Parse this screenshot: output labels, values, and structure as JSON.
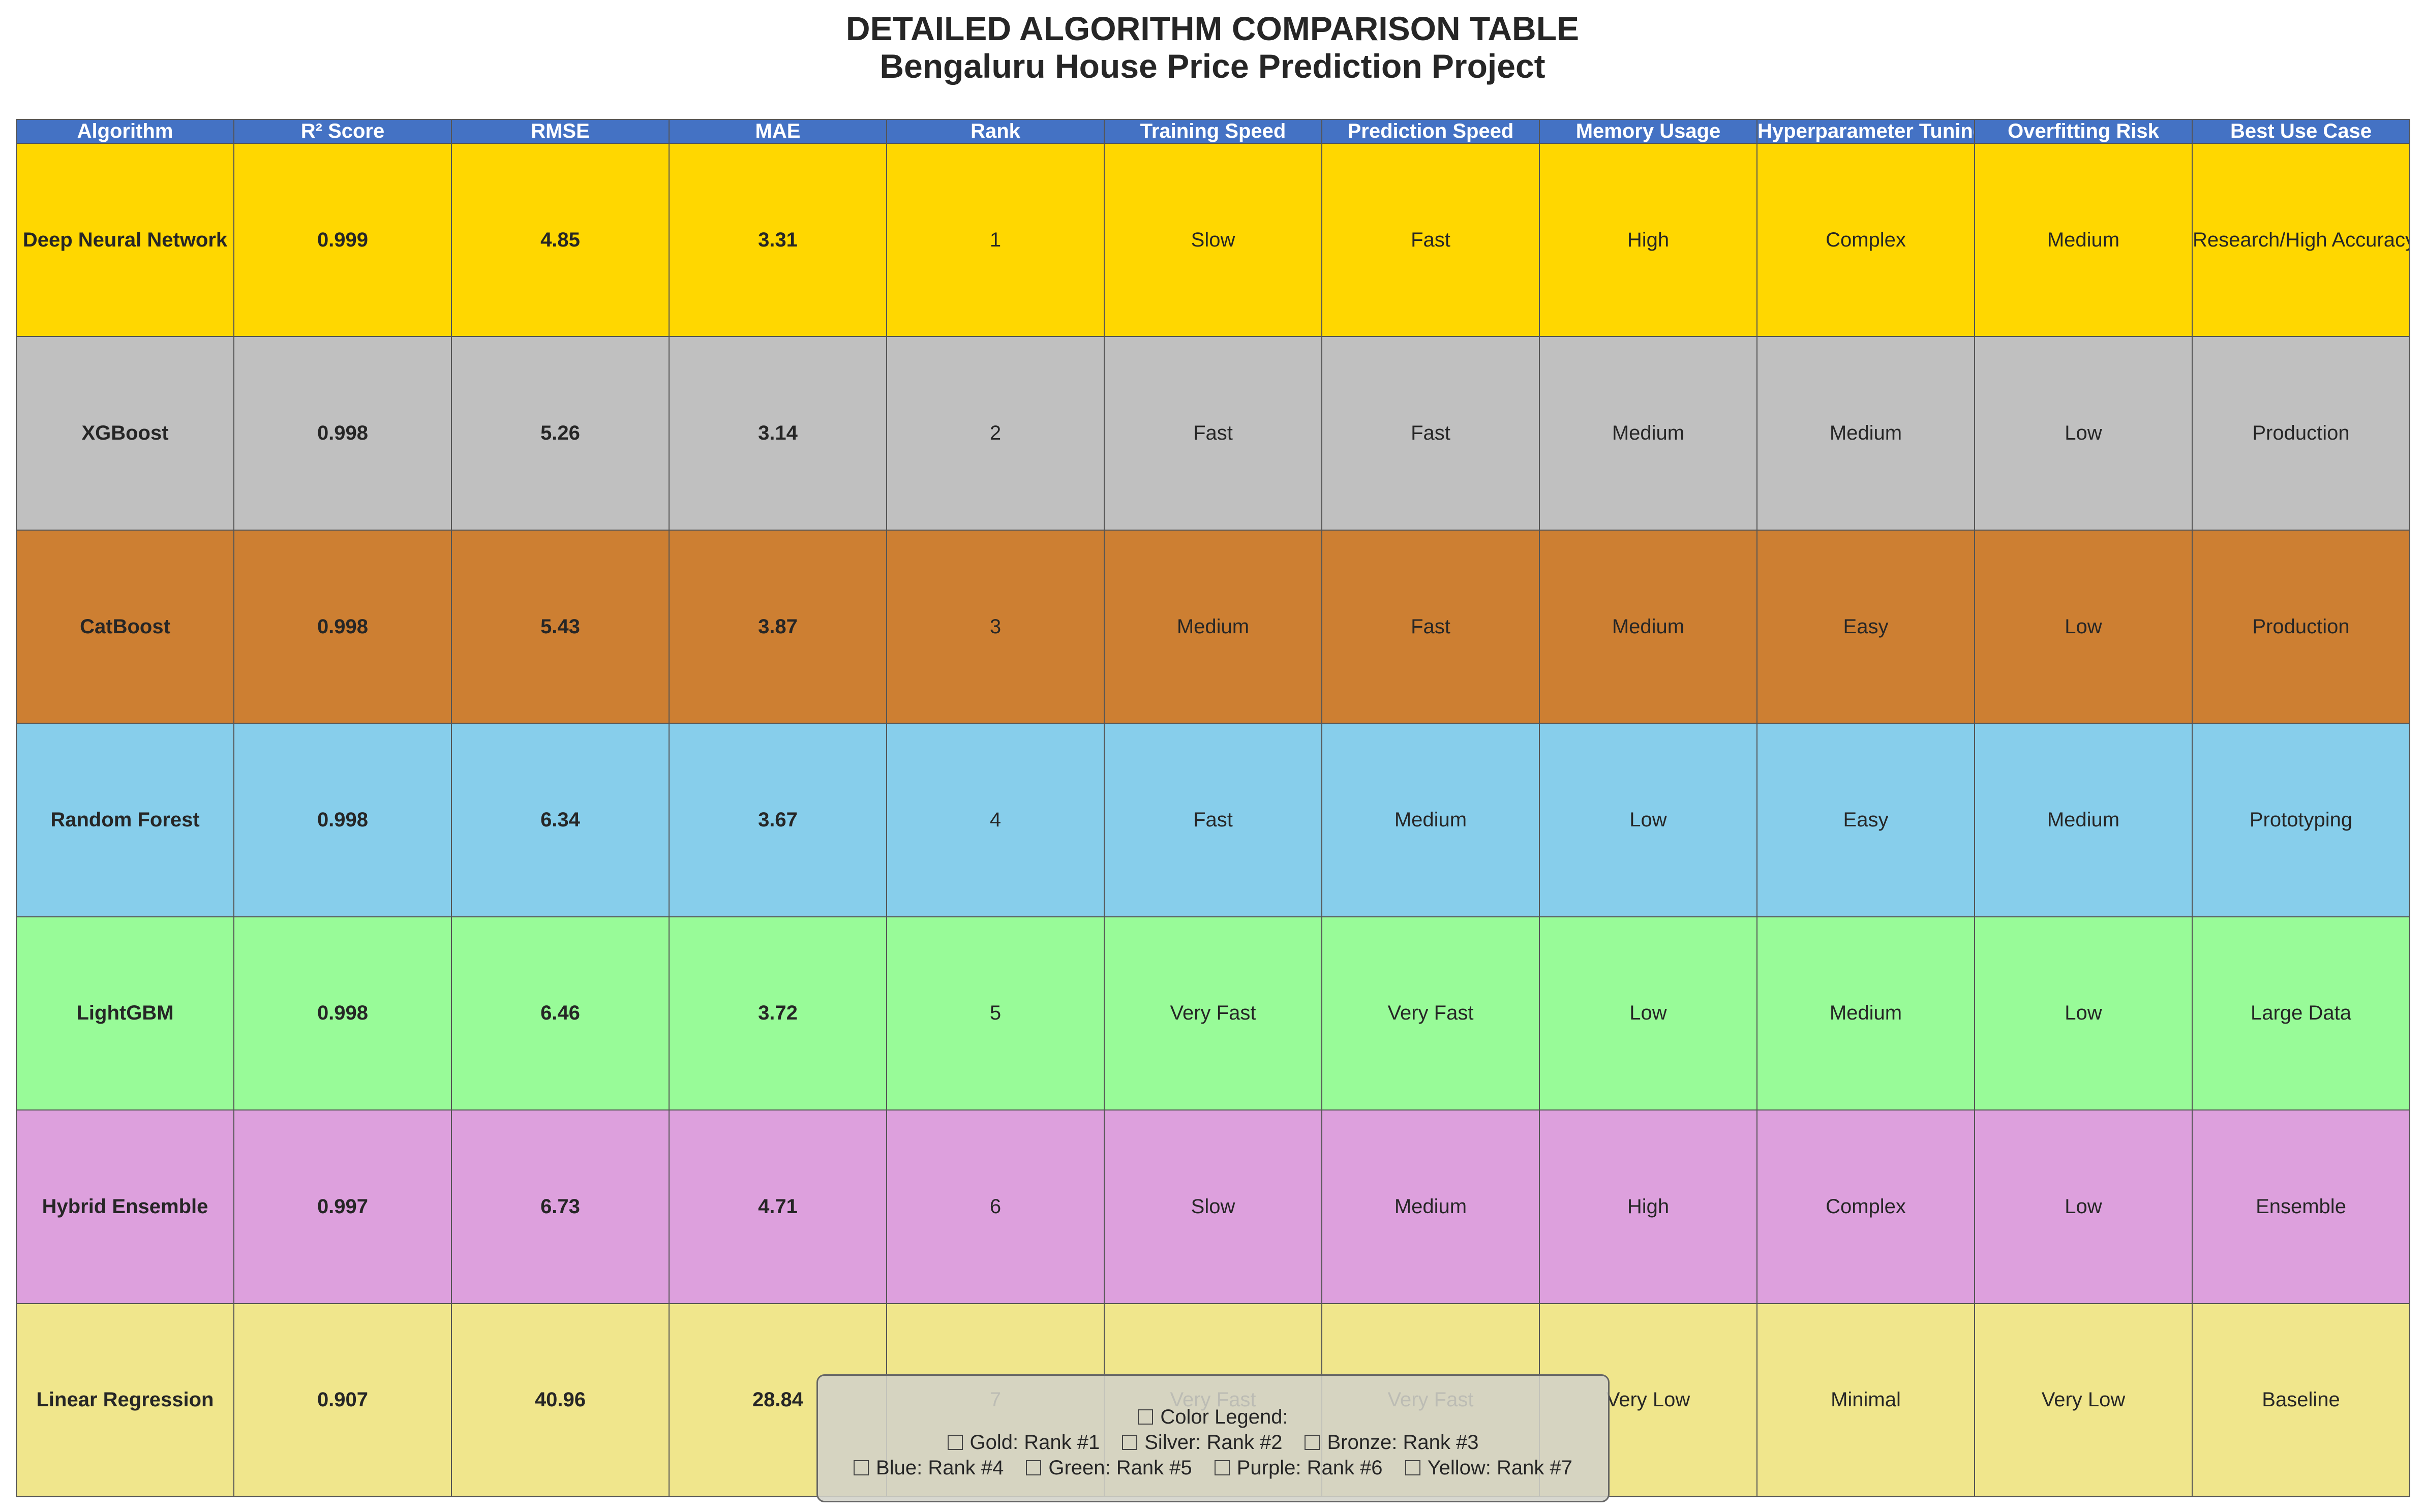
{
  "chart_data": {
    "type": "table",
    "title": "DETAILED ALGORITHM COMPARISON TABLE",
    "subtitle": "Bengaluru House Price Prediction Project",
    "columns": [
      "Algorithm",
      "R² Score",
      "RMSE",
      "MAE",
      "Rank",
      "Training Speed",
      "Prediction Speed",
      "Memory Usage",
      "Hyperparameter Tuning",
      "Overfitting Risk",
      "Best Use Case"
    ],
    "rows": [
      {
        "color": "#ffd700",
        "cells": [
          "Deep Neural Network",
          "0.999",
          "4.85",
          "3.31",
          "1",
          "Slow",
          "Fast",
          "High",
          "Complex",
          "Medium",
          "Research/High Accuracy"
        ]
      },
      {
        "color": "#c0c0c0",
        "cells": [
          "XGBoost",
          "0.998",
          "5.26",
          "3.14",
          "2",
          "Fast",
          "Fast",
          "Medium",
          "Medium",
          "Low",
          "Production"
        ]
      },
      {
        "color": "#cd7f32",
        "cells": [
          "CatBoost",
          "0.998",
          "5.43",
          "3.87",
          "3",
          "Medium",
          "Fast",
          "Medium",
          "Easy",
          "Low",
          "Production"
        ]
      },
      {
        "color": "#87ceeb",
        "cells": [
          "Random Forest",
          "0.998",
          "6.34",
          "3.67",
          "4",
          "Fast",
          "Medium",
          "Low",
          "Easy",
          "Medium",
          "Prototyping"
        ]
      },
      {
        "color": "#98fb98",
        "cells": [
          "LightGBM",
          "0.998",
          "6.46",
          "3.72",
          "5",
          "Very Fast",
          "Very Fast",
          "Low",
          "Medium",
          "Low",
          "Large Data"
        ]
      },
      {
        "color": "#dda0dd",
        "cells": [
          "Hybrid Ensemble",
          "0.997",
          "6.73",
          "4.71",
          "6",
          "Slow",
          "Medium",
          "High",
          "Complex",
          "Low",
          "Ensemble"
        ]
      },
      {
        "color": "#f0e68c",
        "cells": [
          "Linear Regression",
          "0.907",
          "40.96",
          "28.84",
          "7",
          "Very Fast",
          "Very Fast",
          "Very Low",
          "Minimal",
          "Very Low",
          "Baseline"
        ]
      }
    ],
    "legend": {
      "title": "Color Legend:",
      "placement": "bottom-center",
      "items": [
        {
          "label": "Gold: Rank #1",
          "color": "#ffd700"
        },
        {
          "label": "Silver: Rank #2",
          "color": "#c0c0c0"
        },
        {
          "label": "Bronze: Rank #3",
          "color": "#cd7f32"
        },
        {
          "label": "Blue: Rank #4",
          "color": "#87ceeb"
        },
        {
          "label": "Green: Rank #5",
          "color": "#98fb98"
        },
        {
          "label": "Purple: Rank #6",
          "color": "#dda0dd"
        },
        {
          "label": "Yellow: Rank #7",
          "color": "#f0e68c"
        }
      ]
    },
    "header_color": "#4472c4"
  }
}
